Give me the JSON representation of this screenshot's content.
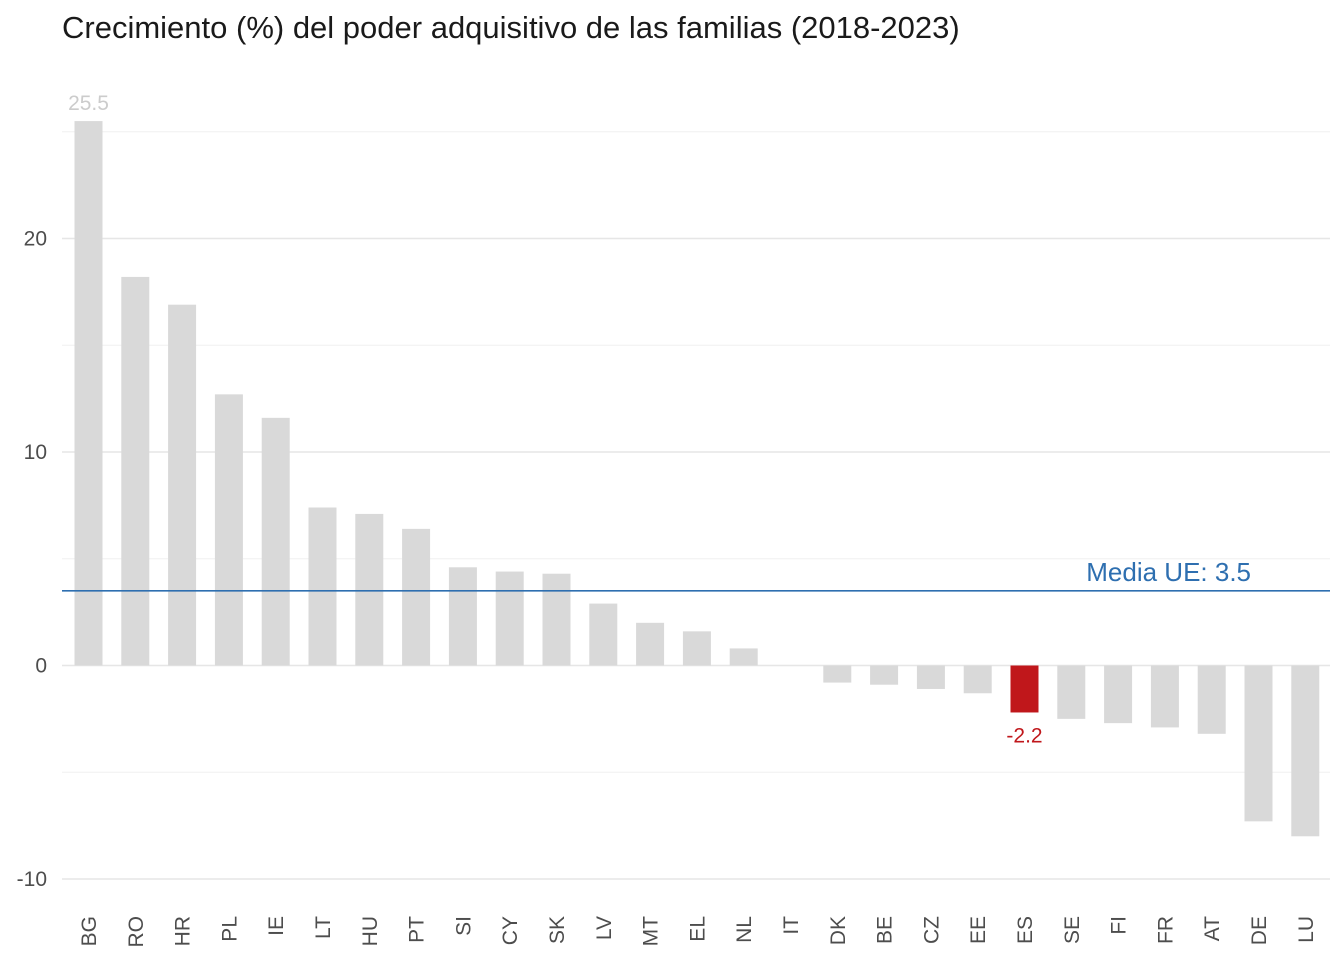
{
  "chart_data": {
    "type": "bar",
    "title": "Crecimiento (%) del poder adquisitivo de las familias (2018-2023)",
    "categories": [
      "BG",
      "RO",
      "HR",
      "PL",
      "IE",
      "LT",
      "HU",
      "PT",
      "SI",
      "CY",
      "SK",
      "LV",
      "MT",
      "EL",
      "NL",
      "IT",
      "DK",
      "BE",
      "CZ",
      "EE",
      "ES",
      "SE",
      "FI",
      "FR",
      "AT",
      "DE",
      "LU"
    ],
    "values": [
      25.5,
      18.2,
      16.9,
      12.7,
      11.6,
      7.4,
      7.1,
      6.4,
      4.6,
      4.4,
      4.3,
      2.9,
      2.0,
      1.6,
      0.8,
      0.0,
      -0.8,
      -0.9,
      -1.1,
      -1.3,
      -2.2,
      -2.5,
      -2.7,
      -2.9,
      -3.2,
      -7.3,
      -8.0
    ],
    "highlight": {
      "category": "ES",
      "color": "#c0171b"
    },
    "bar_color": "#d9d9d9",
    "ylim": [
      -10.5,
      27
    ],
    "yticks": [
      -10,
      0,
      10,
      20
    ],
    "grid": true,
    "reference_line": {
      "value": 3.5,
      "label": "Media UE: 3.5",
      "color": "#2e6fb0"
    },
    "data_labels": [
      {
        "category": "BG",
        "text": "25.5",
        "color": "#cccccc"
      },
      {
        "category": "ES",
        "text": "-2.2",
        "color": "#c0171b"
      }
    ],
    "xlabel": "",
    "ylabel": ""
  }
}
